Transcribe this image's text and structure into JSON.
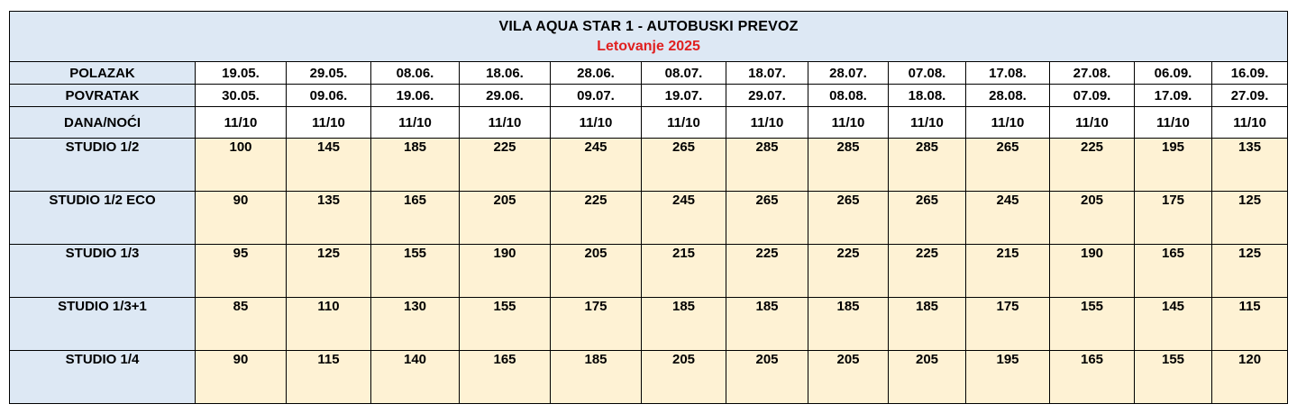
{
  "title": "VILA AQUA STAR 1 - AUTOBUSKI PREVOZ",
  "subtitle": "Letovanje 2025",
  "colors": {
    "label_bg": "#dde8f4",
    "price_bg": "#fef2d4",
    "subtitle": "#e02020",
    "border": "#000000"
  },
  "rows": [
    {
      "label": "POLAZAK",
      "values": [
        "19.05.",
        "29.05.",
        "08.06.",
        "18.06.",
        "28.06.",
        "08.07.",
        "18.07.",
        "28.07.",
        "07.08.",
        "17.08.",
        "27.08.",
        "06.09.",
        "16.09."
      ]
    },
    {
      "label": "POVRATAK",
      "values": [
        "30.05.",
        "09.06.",
        "19.06.",
        "29.06.",
        "09.07.",
        "19.07.",
        "29.07.",
        "08.08.",
        "18.08.",
        "28.08.",
        "07.09.",
        "17.09.",
        "27.09."
      ]
    },
    {
      "label": "DANA/NOĆI",
      "values": [
        "11/10",
        "11/10",
        "11/10",
        "11/10",
        "11/10",
        "11/10",
        "11/10",
        "11/10",
        "11/10",
        "11/10",
        "11/10",
        "11/10",
        "11/10"
      ]
    },
    {
      "label": "STUDIO 1/2",
      "values": [
        "100",
        "145",
        "185",
        "225",
        "245",
        "265",
        "285",
        "285",
        "285",
        "265",
        "225",
        "195",
        "135"
      ]
    },
    {
      "label": "STUDIO 1/2 ECO",
      "values": [
        "90",
        "135",
        "165",
        "205",
        "225",
        "245",
        "265",
        "265",
        "265",
        "245",
        "205",
        "175",
        "125"
      ]
    },
    {
      "label": "STUDIO 1/3",
      "values": [
        "95",
        "125",
        "155",
        "190",
        "205",
        "215",
        "225",
        "225",
        "225",
        "215",
        "190",
        "165",
        "125"
      ]
    },
    {
      "label": "STUDIO 1/3+1",
      "values": [
        "85",
        "110",
        "130",
        "155",
        "175",
        "185",
        "185",
        "185",
        "185",
        "175",
        "155",
        "145",
        "115"
      ]
    },
    {
      "label": "STUDIO 1/4",
      "values": [
        "90",
        "115",
        "140",
        "165",
        "185",
        "205",
        "205",
        "205",
        "205",
        "195",
        "165",
        "155",
        "120"
      ]
    }
  ]
}
